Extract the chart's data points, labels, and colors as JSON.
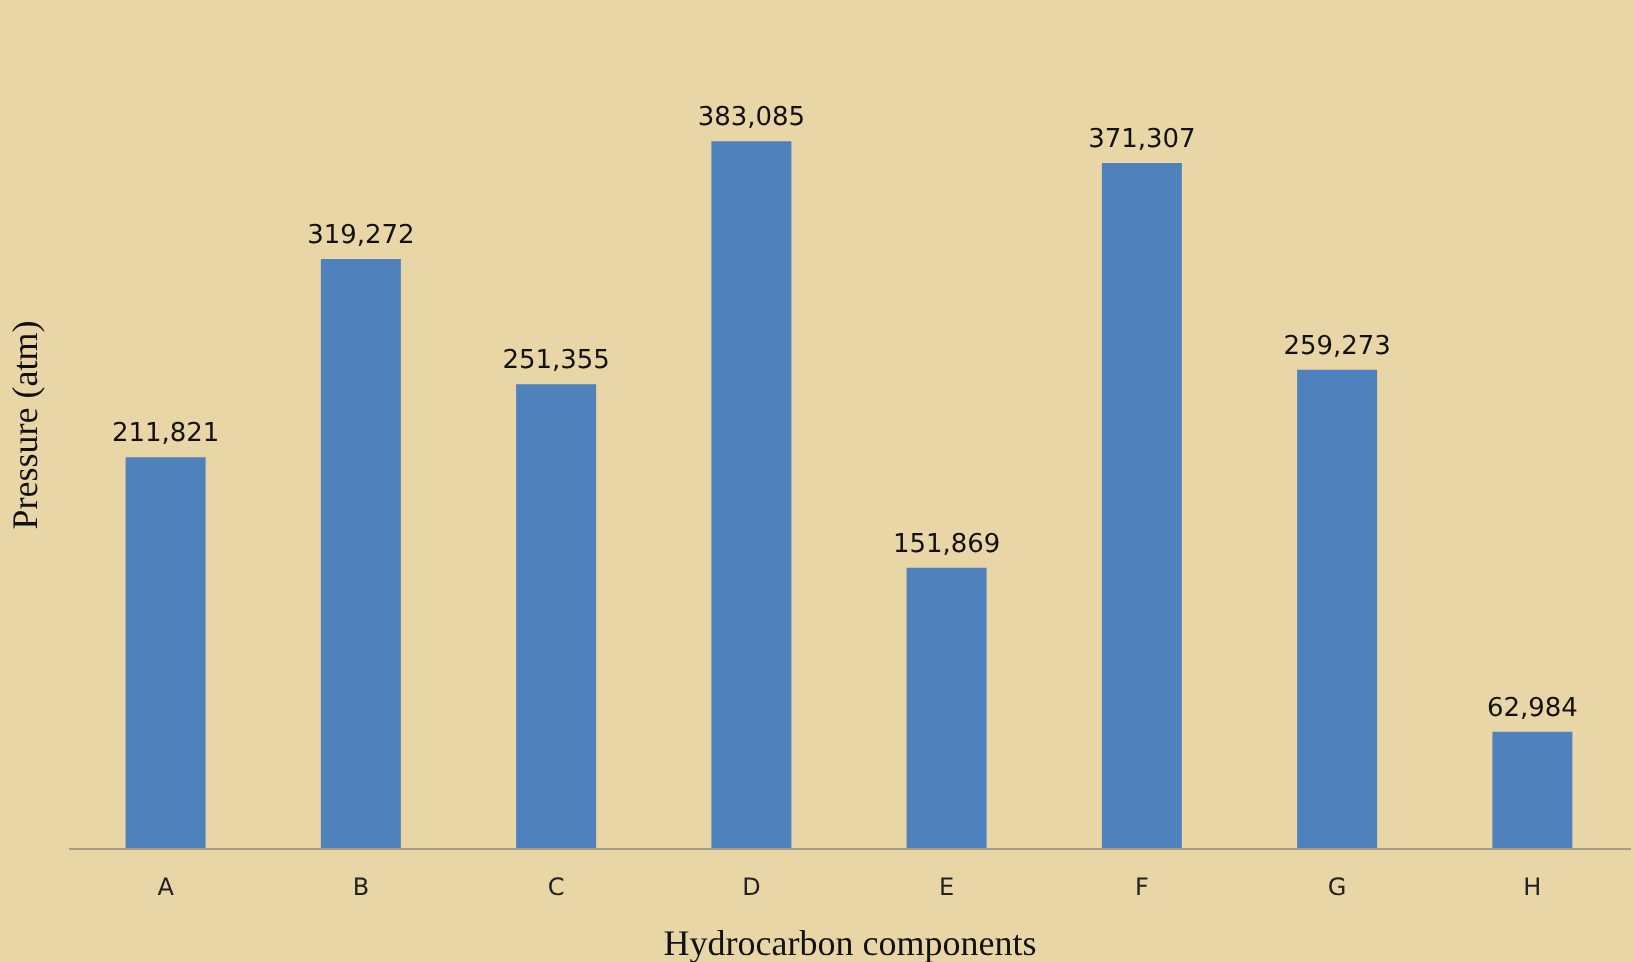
{
  "chart_data": {
    "type": "bar",
    "xlabel": "Hydrocarbon components",
    "ylabel": "Pressure (atm)",
    "categories": [
      "A",
      "B",
      "C",
      "D",
      "E",
      "F",
      "G",
      "H"
    ],
    "values": [
      211821,
      319272,
      251355,
      383085,
      151869,
      371307,
      259273,
      62984
    ],
    "value_labels": [
      "211,821",
      "319,272",
      "251,355",
      "383,085",
      "151,869",
      "371,307",
      "259,273",
      "62,984"
    ],
    "color": "#4f81bd",
    "grid": false
  }
}
